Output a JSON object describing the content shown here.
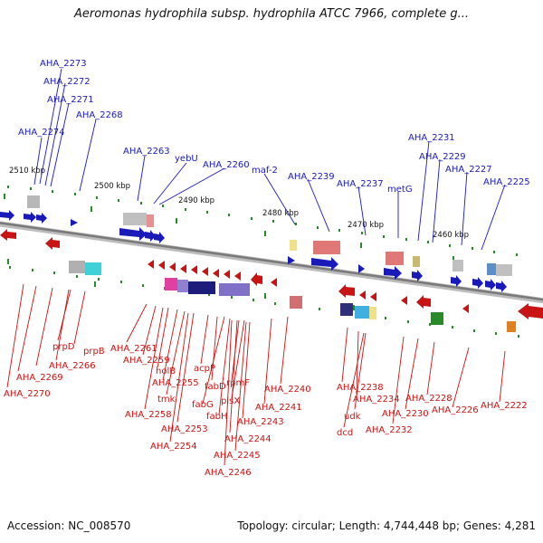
{
  "title": "Aeromonas hydrophila subsp. hydrophila ATCC 7966, complete g...",
  "footer": {
    "accession": "Accession: NC_008570",
    "summary": "Topology: circular; Length: 4,744,448 bp; Genes: 4,281"
  },
  "colors": {
    "forward": "#1a1ab8",
    "reverse": "#c81414",
    "axis": "#8a8a8a",
    "tick": "#2a8a2a"
  },
  "kbp_labels": [
    {
      "id": "2510",
      "text": "2510 kbp"
    },
    {
      "id": "2500",
      "text": "2500 kbp"
    },
    {
      "id": "2490",
      "text": "2490 kbp"
    },
    {
      "id": "2480",
      "text": "2480 kbp"
    },
    {
      "id": "2470",
      "text": "2470 kbp"
    },
    {
      "id": "2460",
      "text": "2460 kbp"
    }
  ],
  "top_labels": [
    {
      "id": "aha2273",
      "text": "AHA_2273"
    },
    {
      "id": "aha2272",
      "text": "AHA_2272"
    },
    {
      "id": "aha2271",
      "text": "AHA_2271"
    },
    {
      "id": "aha2268",
      "text": "AHA_2268"
    },
    {
      "id": "aha2274",
      "text": "AHA_2274"
    },
    {
      "id": "aha2263",
      "text": "AHA_2263"
    },
    {
      "id": "yebu",
      "text": "yebU"
    },
    {
      "id": "aha2260",
      "text": "AHA_2260"
    },
    {
      "id": "maf2",
      "text": "maf-2"
    },
    {
      "id": "aha2239",
      "text": "AHA_2239"
    },
    {
      "id": "aha2237",
      "text": "AHA_2237"
    },
    {
      "id": "metg",
      "text": "metG"
    },
    {
      "id": "aha2231",
      "text": "AHA_2231"
    },
    {
      "id": "aha2229",
      "text": "AHA_2229"
    },
    {
      "id": "aha2227",
      "text": "AHA_2227"
    },
    {
      "id": "aha2225",
      "text": "AHA_2225"
    }
  ],
  "bottom_labels": [
    {
      "id": "prpd",
      "text": "prpD"
    },
    {
      "id": "prpb",
      "text": "prpB"
    },
    {
      "id": "aha2269",
      "text": "AHA_2269"
    },
    {
      "id": "aha2266",
      "text": "AHA_2266"
    },
    {
      "id": "aha2270",
      "text": "AHA_2270"
    },
    {
      "id": "aha2261",
      "text": "AHA_2261"
    },
    {
      "id": "aha2259",
      "text": "AHA_2259"
    },
    {
      "id": "holb",
      "text": "holB"
    },
    {
      "id": "aha2255",
      "text": "AHA_2255"
    },
    {
      "id": "tmk",
      "text": "tmk"
    },
    {
      "id": "aha2258",
      "text": "AHA_2258"
    },
    {
      "id": "aha2253",
      "text": "AHA_2253"
    },
    {
      "id": "aha2254",
      "text": "AHA_2254"
    },
    {
      "id": "acpp",
      "text": "acpP"
    },
    {
      "id": "fabd",
      "text": "fabD"
    },
    {
      "id": "fabg",
      "text": "fabG"
    },
    {
      "id": "fabh",
      "text": "fabH"
    },
    {
      "id": "rpmf",
      "text": "rpmF"
    },
    {
      "id": "plsx",
      "text": "plsX"
    },
    {
      "id": "aha2243",
      "text": "AHA_2243"
    },
    {
      "id": "aha2244",
      "text": "AHA_2244"
    },
    {
      "id": "aha2245",
      "text": "AHA_2245"
    },
    {
      "id": "aha2246",
      "text": "AHA_2246"
    },
    {
      "id": "aha2240",
      "text": "AHA_2240"
    },
    {
      "id": "aha2241",
      "text": "AHA_2241"
    },
    {
      "id": "aha2238",
      "text": "AHA_2238"
    },
    {
      "id": "aha2234",
      "text": "AHA_2234"
    },
    {
      "id": "udk",
      "text": "udk"
    },
    {
      "id": "dcd",
      "text": "dcd"
    },
    {
      "id": "aha2230",
      "text": "AHA_2230"
    },
    {
      "id": "aha2232",
      "text": "AHA_2232"
    },
    {
      "id": "aha2228",
      "text": "AHA_2228"
    },
    {
      "id": "aha2226",
      "text": "AHA_2226"
    },
    {
      "id": "aha2222",
      "text": "AHA_2222"
    }
  ]
}
